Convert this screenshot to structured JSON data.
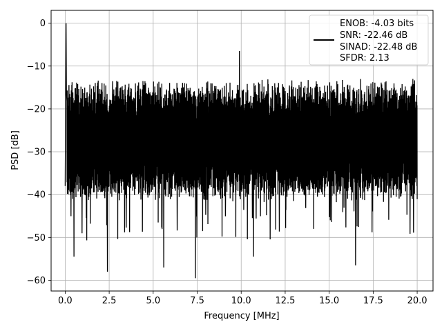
{
  "chart_data": {
    "type": "line",
    "xlabel": "Frequency [MHz]",
    "ylabel": "PSD [dB]",
    "xlim": [
      -0.8,
      20.9
    ],
    "ylim": [
      -62.5,
      3
    ],
    "grid": true,
    "x_ticks": [
      0.0,
      2.5,
      5.0,
      7.5,
      10.0,
      12.5,
      15.0,
      17.5,
      20.0
    ],
    "x_tick_labels": [
      "0.0",
      "2.5",
      "5.0",
      "7.5",
      "10.0",
      "12.5",
      "15.0",
      "17.5",
      "20.0"
    ],
    "y_ticks": [
      0,
      -10,
      -20,
      -30,
      -40,
      -50,
      -60
    ],
    "y_tick_labels": [
      "0",
      "−10",
      "−20",
      "−30",
      "−40",
      "−50",
      "−60"
    ],
    "legend_position": "top-right",
    "legend_lines": [
      "ENOB: -4.03 bits",
      "SNR: -22.46 dB",
      "SINAD: -22.48 dB",
      "SFDR: 2.13"
    ],
    "series": [
      {
        "color": "#000000",
        "x_range": [
          0,
          20
        ],
        "peak": {
          "x": 0.05,
          "y": 0
        },
        "upper_envelope_approx": -15,
        "lower_envelope_approx": -40,
        "notable_minima": [
          {
            "x": 0.5,
            "y": -54.5
          },
          {
            "x": 2.4,
            "y": -58
          },
          {
            "x": 5.6,
            "y": -57
          },
          {
            "x": 7.4,
            "y": -59.5
          },
          {
            "x": 10.7,
            "y": -54.5
          },
          {
            "x": 16.5,
            "y": -56.5
          }
        ],
        "notable_maxima": [
          {
            "x": 9.9,
            "y": -6.5
          }
        ]
      }
    ]
  }
}
